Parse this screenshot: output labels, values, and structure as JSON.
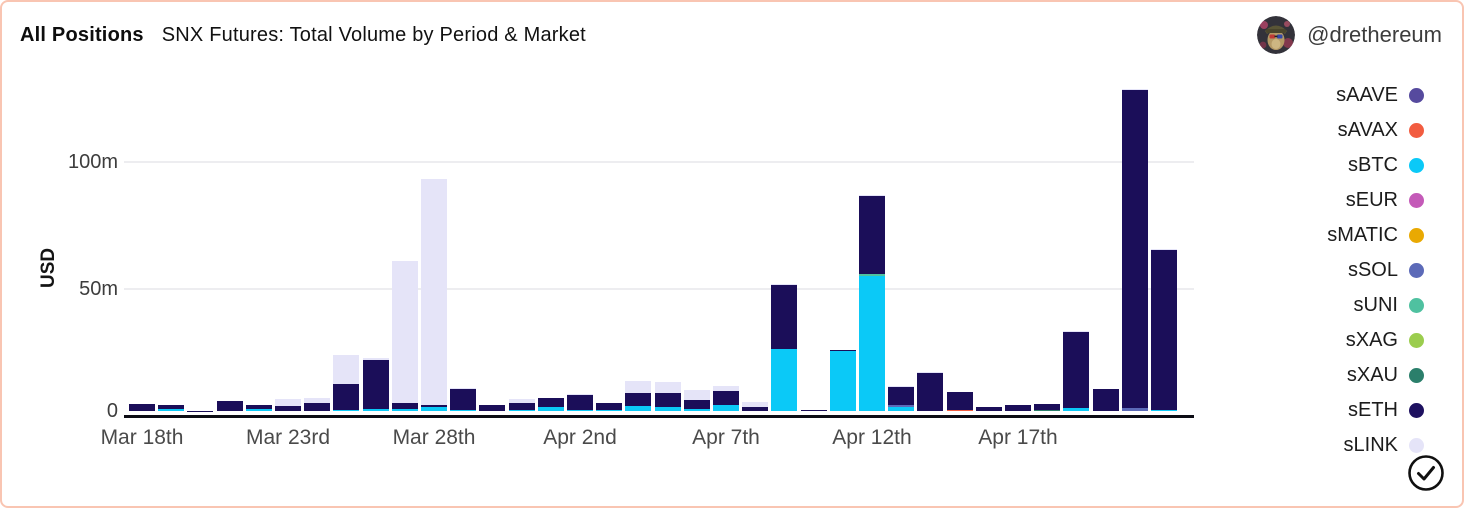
{
  "header": {
    "badge": "All Positions",
    "title": "SNX Futures: Total Volume by Period & Market",
    "handle": "@drethereum",
    "avatar_alt": "ape-profile-picture"
  },
  "axes": {
    "y_title": "USD",
    "y_ticks": [
      {
        "label": "0",
        "value": 0
      },
      {
        "label": "50m",
        "value": 50
      },
      {
        "label": "100m",
        "value": 100
      }
    ],
    "x_ticks": [
      {
        "label": "Mar 18th",
        "slot": 0
      },
      {
        "label": "Mar 23rd",
        "slot": 5
      },
      {
        "label": "Mar 28th",
        "slot": 10
      },
      {
        "label": "Apr 2nd",
        "slot": 15
      },
      {
        "label": "Apr 7th",
        "slot": 20
      },
      {
        "label": "Apr 12th",
        "slot": 25
      },
      {
        "label": "Apr 17th",
        "slot": 30
      }
    ]
  },
  "legend": {
    "items": [
      {
        "label": "sAAVE",
        "color": "#564a9e"
      },
      {
        "label": "sAVAX",
        "color": "#f25c40"
      },
      {
        "label": "sBTC",
        "color": "#0bc9f7"
      },
      {
        "label": "sEUR",
        "color": "#c45ab8"
      },
      {
        "label": "sMATIC",
        "color": "#e9a902"
      },
      {
        "label": "sSOL",
        "color": "#5c6ab8"
      },
      {
        "label": "sUNI",
        "color": "#4fc1a0"
      },
      {
        "label": "sXAG",
        "color": "#9bcd4e"
      },
      {
        "label": "sXAU",
        "color": "#2b7f6b"
      },
      {
        "label": "sETH",
        "color": "#1e1160"
      },
      {
        "label": "sLINK",
        "color": "#e5e4f8"
      }
    ]
  },
  "footer": {
    "check_icon": "circled-checkmark"
  },
  "chart_data": {
    "type": "bar",
    "stacked": true,
    "unit": "USD millions",
    "title": "SNX Futures: Total Volume by Period & Market",
    "xlabel": "",
    "ylabel": "USD",
    "ylim": [
      0,
      137
    ],
    "grid": "horizontal",
    "legend_position": "right",
    "stack_order": [
      "sAAVE",
      "sAVAX",
      "sBTC",
      "sEUR",
      "sMATIC",
      "sSOL",
      "sUNI",
      "sXAG",
      "sXAU",
      "sETH",
      "sLINK"
    ],
    "colors": {
      "sAAVE": "#564a9e",
      "sAVAX": "#f25c40",
      "sBTC": "#0bc9f7",
      "sEUR": "#c45ab8",
      "sMATIC": "#e9a902",
      "sSOL": "#5c6ab8",
      "sUNI": "#4fc1a0",
      "sXAG": "#9bcd4e",
      "sXAU": "#2b7f6b",
      "sETH": "#1b0e59",
      "sLINK": "#e5e4f8"
    },
    "bars": [
      {
        "date": "Mar 18",
        "sETH": 2.6
      },
      {
        "date": "Mar 19",
        "sBTC": 0.9,
        "sETH": 1.5
      },
      {
        "date": "Mar 20",
        "sETH": 0.15
      },
      {
        "date": "Mar 21",
        "sETH": 4.1
      },
      {
        "date": "Mar 22",
        "sBTC": 0.7,
        "sETH": 1.8
      },
      {
        "date": "Mar 23",
        "sETH": 2.0,
        "sLINK": 2.8
      },
      {
        "date": "Mar 24",
        "sETH": 3.2,
        "sLINK": 2.0
      },
      {
        "date": "Mar 25",
        "sBTC": 0.3,
        "sETH": 10.4,
        "sLINK": 11.3
      },
      {
        "date": "Mar 26",
        "sBTC": 0.8,
        "sETH": 19.2,
        "sLINK": 0.7
      },
      {
        "date": "Mar 27",
        "sBTC": 0.6,
        "sETH": 2.4,
        "sLINK": 56.0
      },
      {
        "date": "Mar 28",
        "sBTC": 1.6,
        "sETH": 0.9,
        "sLINK": 89.0
      },
      {
        "date": "Mar 29",
        "sBTC": 0.5,
        "sETH": 8.3,
        "sLINK": 0.3
      },
      {
        "date": "Mar 30",
        "sETH": 2.4
      },
      {
        "date": "Mar 31",
        "sBTC": 0.4,
        "sETH": 2.9,
        "sLINK": 1.3
      },
      {
        "date": "Apr 1",
        "sBTC": 1.6,
        "sETH": 3.4
      },
      {
        "date": "Apr 2",
        "sBTC": 0.5,
        "sETH": 5.8,
        "sLINK": 0.5
      },
      {
        "date": "Apr 3",
        "sBTC": 0.4,
        "sETH": 2.9
      },
      {
        "date": "Apr 4",
        "sBTC": 2.0,
        "sETH": 5.2,
        "sLINK": 4.5
      },
      {
        "date": "Apr 5",
        "sBTC": 1.7,
        "sETH": 5.3,
        "sLINK": 4.3
      },
      {
        "date": "Apr 6",
        "sBTC": 0.6,
        "sETH": 3.9,
        "sLINK": 3.6
      },
      {
        "date": "Apr 7",
        "sBTC": 2.2,
        "sETH": 5.5,
        "sLINK": 2.0
      },
      {
        "date": "Apr 8",
        "sETH": 1.5,
        "sLINK": 2.0
      },
      {
        "date": "Apr 9",
        "sBTC": 24.6,
        "sETH": 25.2,
        "sLINK": 0.4
      },
      {
        "date": "Apr 10",
        "sETH": 0.5
      },
      {
        "date": "Apr 11",
        "sBTC": 23.6,
        "sETH": 0.6
      },
      {
        "date": "Apr 12",
        "sBTC": 53.0,
        "sUNI": 0.9,
        "sETH": 30.8,
        "sLINK": 0.5
      },
      {
        "date": "Apr 13",
        "sBTC": 1.6,
        "sSOL": 0.9,
        "sETH": 7.1,
        "sLINK": 0.4
      },
      {
        "date": "Apr 14",
        "sETH": 14.8,
        "sLINK": 0.7
      },
      {
        "date": "Apr 15",
        "sAVAX": 0.3,
        "sETH": 7.3
      },
      {
        "date": "Apr 16",
        "sETH": 1.7
      },
      {
        "date": "Apr 17",
        "sETH": 2.3
      },
      {
        "date": "Apr 18",
        "sXAU": 0.4,
        "sETH": 2.5
      },
      {
        "date": "Apr 19",
        "sBTC": 1.3,
        "sETH": 30.0,
        "sLINK": 0.4
      },
      {
        "date": "Apr 20",
        "sETH": 8.5
      },
      {
        "date": "Apr 21",
        "sSOL": 1.2,
        "sETH": 125.2,
        "sLINK": 0.3
      },
      {
        "date": "Apr 22",
        "sBTC": 0.5,
        "sETH": 63.0,
        "sLINK": 0.3
      }
    ]
  }
}
